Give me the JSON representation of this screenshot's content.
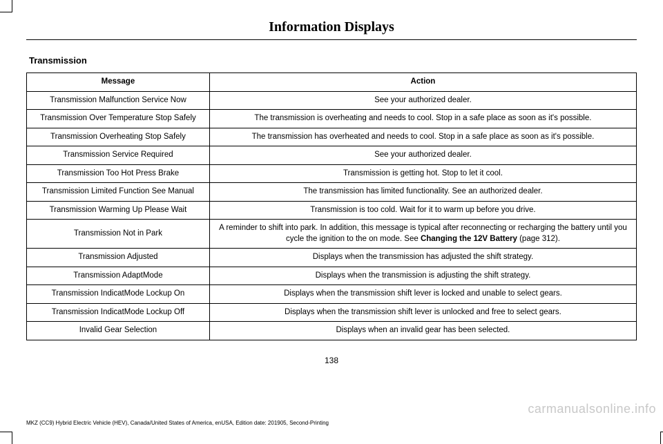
{
  "chapter_title": "Information Displays",
  "section_title": "Transmission",
  "table": {
    "columns": [
      "Message",
      "Action"
    ],
    "col_widths_pct": [
      30,
      70
    ],
    "rows": [
      {
        "message": "Transmission Malfunction Service Now",
        "action": "See your authorized dealer."
      },
      {
        "message": "Transmission Over Temperature Stop Safely",
        "action": "The transmission is overheating and needs to cool.  Stop in a safe place as soon as it's possible."
      },
      {
        "message": "Transmission Overheating Stop Safely",
        "action": "The transmission has overheated and needs to cool. Stop in a safe place as soon as it's possible."
      },
      {
        "message": "Transmission Service Required",
        "action": "See your authorized dealer."
      },
      {
        "message": "Transmission Too Hot Press Brake",
        "action": "Transmission is getting hot.  Stop to let it cool."
      },
      {
        "message": "Transmission Limited Function See Manual",
        "action": "The transmission has limited functionality.  See an authorized dealer."
      },
      {
        "message": "Transmission Warming Up Please Wait",
        "action": "Transmission is too cold. Wait for it to warm up before you drive."
      },
      {
        "message": "Transmission Not in Park",
        "action_pre": "A reminder to shift into park. In addition, this message is typical after reconnecting or recharging the battery until you cycle the ignition to the on mode.  See ",
        "action_bold": "Changing the 12V Battery",
        "action_post": " (page 312)."
      },
      {
        "message": "Transmission Adjusted",
        "action": "Displays when the transmission has adjusted the shift strategy."
      },
      {
        "message": "Transmission AdaptMode",
        "action": "Displays when the transmission is adjusting the shift strategy."
      },
      {
        "message": "Transmission IndicatMode Lockup On",
        "action": "Displays when the transmission shift lever is locked and unable to select gears."
      },
      {
        "message": "Transmission IndicatMode Lockup Off",
        "action": "Displays when the transmission shift lever is unlocked and free to select gears."
      },
      {
        "message": "Invalid Gear Selection",
        "action": "Displays when an invalid gear has been selected."
      }
    ]
  },
  "page_number": "138",
  "footer_text": "MKZ (CC9) Hybrid Electric Vehicle (HEV), Canada/United States of America, enUSA, Edition date: 201905, Second-Printing",
  "watermark": "carmanualsonline.info",
  "style": {
    "background_color": "#ffffff",
    "text_color": "#000000",
    "border_color": "#000000",
    "watermark_color": "#c8c8c8",
    "chapter_font": "serif-bold",
    "chapter_fontsize_pt": 20,
    "section_fontsize_pt": 13,
    "cell_fontsize_pt": 11.5,
    "footer_fontsize_pt": 8
  }
}
